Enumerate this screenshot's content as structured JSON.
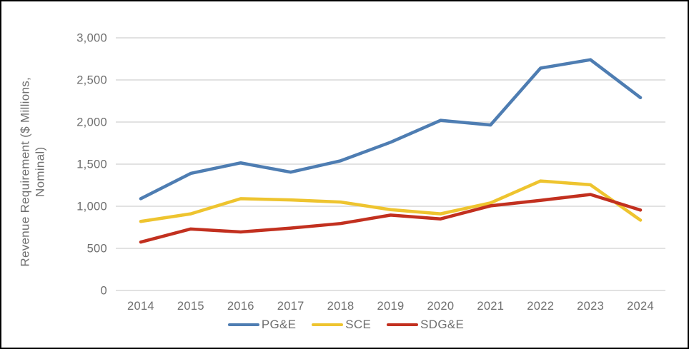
{
  "window": {
    "background": "#ffffff",
    "frame_border_color": "#000000"
  },
  "chart_data": {
    "type": "line",
    "title": "",
    "xlabel": "",
    "ylabel": "Revenue Requirement ($ Millions, Nominal)",
    "categories": [
      "2014",
      "2015",
      "2016",
      "2017",
      "2018",
      "2019",
      "2020",
      "2021",
      "2022",
      "2023",
      "2024"
    ],
    "series": [
      {
        "name": "PG&E",
        "color": "#4e7db2",
        "values": [
          1090,
          1390,
          1515,
          1405,
          1540,
          1760,
          2020,
          1965,
          2640,
          2740,
          2290
        ]
      },
      {
        "name": "SCE",
        "color": "#eec42f",
        "values": [
          820,
          910,
          1090,
          1075,
          1050,
          960,
          910,
          1040,
          1300,
          1255,
          835
        ]
      },
      {
        "name": "SDG&E",
        "color": "#c2301f",
        "values": [
          575,
          730,
          695,
          740,
          795,
          895,
          850,
          1005,
          1070,
          1140,
          955
        ]
      }
    ],
    "ylim": [
      0,
      3000
    ],
    "ytick_interval": 500,
    "ytick_labels": [
      "0",
      "500",
      "1,000",
      "1,500",
      "2,000",
      "2,500",
      "3,000"
    ],
    "grid": "horizontal",
    "legend_position": "bottom",
    "style": {
      "gridline_color": "#d9d9d9",
      "axis_text_color": "#6f6f6f",
      "line_width": 4.5
    }
  }
}
